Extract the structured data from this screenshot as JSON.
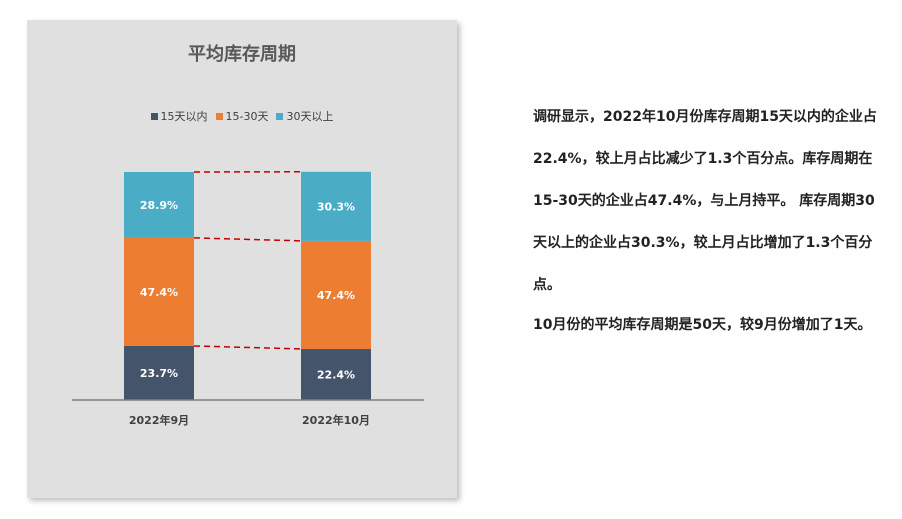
{
  "chart_data": {
    "type": "bar",
    "stacked": true,
    "title": "平均库存周期",
    "categories": [
      "2022年9月",
      "2022年10月"
    ],
    "series": [
      {
        "name": "15天以内",
        "values": [
          23.7,
          22.4
        ],
        "labels": [
          "23.7%",
          "22.4%"
        ],
        "color": "#44546a"
      },
      {
        "name": "15-30天",
        "values": [
          47.4,
          47.4
        ],
        "labels": [
          "47.4%",
          "47.4%"
        ],
        "color": "#ed7d31"
      },
      {
        "name": "30天以上",
        "values": [
          28.9,
          30.3
        ],
        "labels": [
          "28.9%",
          "30.3%"
        ],
        "color": "#4bacc6"
      }
    ],
    "ylim": [
      0,
      100
    ],
    "legend": "top",
    "grid": false,
    "connector_lines": {
      "style": "dashed",
      "color": "#c00000"
    }
  },
  "text": {
    "paragraph1": "调研显示，2022年10月份库存周期15天以内的企业占22.4%，较上月占比减少了1.3个百分点。库存周期在15-30天的企业占47.4%，与上月持平。 库存周期30天以上的企业占30.3%，较上月占比增加了1.3个百分点。",
    "paragraph2": "10月份的平均库存周期是50天，较9月份增加了1天。"
  }
}
